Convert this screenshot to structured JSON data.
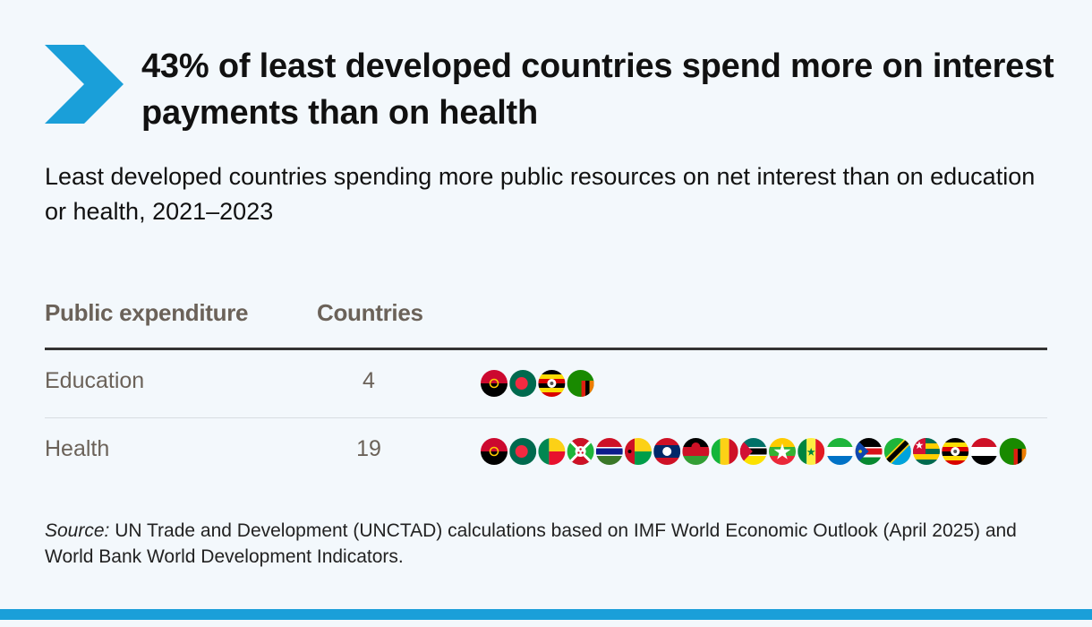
{
  "title": "43% of least developed countries spend more on interest payments than on health",
  "subtitle": "Least developed countries spending more public resources on net interest than on education or health, 2021–2023",
  "colors": {
    "accent": "#1a9fd9",
    "header_text": "#6b6259"
  },
  "icons": {
    "title_marker": "chevron-right-icon",
    "country": "country-flag-icon"
  },
  "chart_data": {
    "type": "table",
    "columns": [
      "Public expenditure",
      "Countries"
    ],
    "rows": [
      {
        "label": "Education",
        "count": "4",
        "value": 4,
        "flags": [
          "angola",
          "bangladesh",
          "uganda",
          "zambia"
        ]
      },
      {
        "label": "Health",
        "count": "19",
        "value": 19,
        "flags": [
          "angola",
          "bangladesh",
          "benin",
          "burundi",
          "gambia",
          "guinea-bissau",
          "laos",
          "malawi",
          "mali",
          "mozambique",
          "myanmar",
          "senegal",
          "sierra-leone",
          "south-sudan",
          "tanzania",
          "togo",
          "uganda",
          "yemen",
          "zambia"
        ]
      }
    ]
  },
  "source": {
    "label": "Source:",
    "text": " UN Trade and Development (UNCTAD) calculations based on IMF World Economic Outlook (April 2025) and World Bank World Development Indicators."
  }
}
